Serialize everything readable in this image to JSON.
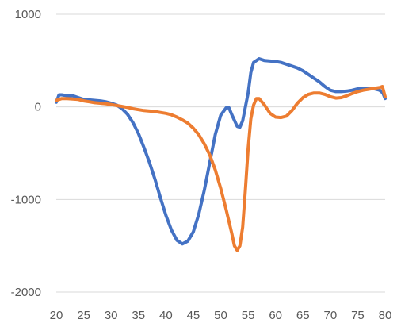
{
  "chart_data": {
    "type": "line",
    "title": "",
    "xlabel": "",
    "ylabel": "",
    "xlim": [
      20,
      80
    ],
    "ylim": [
      -2000,
      1000
    ],
    "xticks": [
      20,
      25,
      30,
      35,
      40,
      45,
      50,
      55,
      60,
      65,
      70,
      75,
      80
    ],
    "yticks": [
      1000,
      0,
      -1000,
      -2000
    ],
    "x_tick_labels": [
      "20",
      "25",
      "30",
      "35",
      "40",
      "45",
      "50",
      "55",
      "60",
      "65",
      "70",
      "75",
      "80"
    ],
    "y_tick_labels": [
      "1000",
      "0",
      "-1000",
      "-2000"
    ],
    "grid": true,
    "legend": "none",
    "series": [
      {
        "color": "#4472C4",
        "points": [
          [
            20,
            50
          ],
          [
            20.5,
            130
          ],
          [
            21,
            130
          ],
          [
            22,
            120
          ],
          [
            23,
            120
          ],
          [
            24,
            100
          ],
          [
            25,
            80
          ],
          [
            26,
            75
          ],
          [
            27,
            70
          ],
          [
            28,
            65
          ],
          [
            29,
            55
          ],
          [
            30,
            40
          ],
          [
            31,
            20
          ],
          [
            32,
            -20
          ],
          [
            33,
            -80
          ],
          [
            34,
            -170
          ],
          [
            35,
            -290
          ],
          [
            36,
            -440
          ],
          [
            37,
            -600
          ],
          [
            38,
            -780
          ],
          [
            39,
            -980
          ],
          [
            40,
            -1170
          ],
          [
            41,
            -1330
          ],
          [
            42,
            -1440
          ],
          [
            43,
            -1480
          ],
          [
            44,
            -1450
          ],
          [
            45,
            -1350
          ],
          [
            46,
            -1160
          ],
          [
            47,
            -900
          ],
          [
            48,
            -600
          ],
          [
            49,
            -300
          ],
          [
            50,
            -90
          ],
          [
            51,
            -10
          ],
          [
            51.5,
            -10
          ],
          [
            52,
            -80
          ],
          [
            53,
            -210
          ],
          [
            53.5,
            -220
          ],
          [
            54,
            -150
          ],
          [
            55,
            150
          ],
          [
            55.5,
            370
          ],
          [
            56,
            480
          ],
          [
            57,
            520
          ],
          [
            58,
            500
          ],
          [
            59,
            495
          ],
          [
            60,
            490
          ],
          [
            61,
            480
          ],
          [
            62,
            460
          ],
          [
            63,
            440
          ],
          [
            64,
            420
          ],
          [
            65,
            390
          ],
          [
            66,
            350
          ],
          [
            67,
            310
          ],
          [
            68,
            270
          ],
          [
            69,
            220
          ],
          [
            70,
            180
          ],
          [
            71,
            165
          ],
          [
            72,
            165
          ],
          [
            73,
            170
          ],
          [
            74,
            180
          ],
          [
            75,
            195
          ],
          [
            76,
            200
          ],
          [
            77,
            200
          ],
          [
            78,
            195
          ],
          [
            79,
            180
          ],
          [
            79.6,
            150
          ],
          [
            80,
            90
          ]
        ]
      },
      {
        "color": "#ED7D31",
        "points": [
          [
            20,
            70
          ],
          [
            21,
            90
          ],
          [
            22,
            90
          ],
          [
            23,
            85
          ],
          [
            24,
            80
          ],
          [
            25,
            65
          ],
          [
            26,
            55
          ],
          [
            27,
            45
          ],
          [
            28,
            40
          ],
          [
            29,
            35
          ],
          [
            30,
            25
          ],
          [
            31,
            15
          ],
          [
            32,
            5
          ],
          [
            33,
            -5
          ],
          [
            34,
            -20
          ],
          [
            35,
            -30
          ],
          [
            36,
            -40
          ],
          [
            37,
            -45
          ],
          [
            38,
            -50
          ],
          [
            39,
            -60
          ],
          [
            40,
            -70
          ],
          [
            41,
            -85
          ],
          [
            42,
            -110
          ],
          [
            43,
            -140
          ],
          [
            44,
            -175
          ],
          [
            45,
            -230
          ],
          [
            46,
            -300
          ],
          [
            47,
            -400
          ],
          [
            48,
            -520
          ],
          [
            49,
            -680
          ],
          [
            50,
            -880
          ],
          [
            51,
            -1110
          ],
          [
            52,
            -1360
          ],
          [
            52.5,
            -1500
          ],
          [
            53,
            -1550
          ],
          [
            53.5,
            -1500
          ],
          [
            54,
            -1300
          ],
          [
            54.5,
            -900
          ],
          [
            55,
            -450
          ],
          [
            55.5,
            -130
          ],
          [
            56,
            20
          ],
          [
            56.5,
            90
          ],
          [
            57,
            90
          ],
          [
            58,
            20
          ],
          [
            59,
            -70
          ],
          [
            60,
            -110
          ],
          [
            61,
            -115
          ],
          [
            62,
            -100
          ],
          [
            63,
            -40
          ],
          [
            64,
            40
          ],
          [
            65,
            100
          ],
          [
            66,
            135
          ],
          [
            67,
            150
          ],
          [
            68,
            150
          ],
          [
            69,
            135
          ],
          [
            70,
            110
          ],
          [
            71,
            95
          ],
          [
            72,
            100
          ],
          [
            73,
            120
          ],
          [
            74,
            145
          ],
          [
            75,
            165
          ],
          [
            76,
            180
          ],
          [
            77,
            190
          ],
          [
            78,
            200
          ],
          [
            79,
            210
          ],
          [
            79.5,
            220
          ],
          [
            80,
            110
          ]
        ]
      }
    ],
    "colors": {
      "grid": "#d9d9d9",
      "tick_text": "#595959"
    }
  }
}
